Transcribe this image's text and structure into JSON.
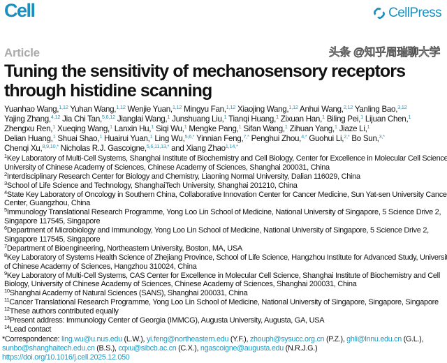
{
  "header": {
    "journal": "Cell",
    "publisher": "CellPress",
    "brand_color": "#1a8fc0"
  },
  "article_type": "Article",
  "title_lines": [
    "Tuning the sensitivity of mechanosensory receptors",
    "through histidine scanning"
  ],
  "author_lines": [
    [
      [
        "Yuanhao Wang,",
        "1,12"
      ],
      [
        "Yuhan Wang,",
        "1,12"
      ],
      [
        "Wenjie Yuan,",
        "1,12"
      ],
      [
        "Mingyu Fan,",
        "1,12"
      ],
      [
        "Xiaojing Wang,",
        "1,12"
      ],
      [
        "Anhui Wang,",
        "2,12"
      ],
      [
        "Yanling Bao,",
        "3,12"
      ]
    ],
    [
      [
        "Yajing Zhang,",
        "4,12"
      ],
      [
        "Jia Chi Tan,",
        "5,6,12"
      ],
      [
        "Jianglai Wang,",
        "1"
      ],
      [
        "Junshuang Liu,",
        "1"
      ],
      [
        "Tianqi Huang,",
        "1"
      ],
      [
        "Zixuan Han,",
        "1"
      ],
      [
        "Biling Pei,",
        "1"
      ],
      [
        "Lijuan Chen,",
        "1"
      ]
    ],
    [
      [
        "Zhengxu Ren,",
        "1"
      ],
      [
        "Xueqing Wang,",
        "1"
      ],
      [
        "Lanxin Hu,",
        "1"
      ],
      [
        "Siqi Wu,",
        "1"
      ],
      [
        "Mengke Pang,",
        "1"
      ],
      [
        "Sifan Wang,",
        "1"
      ],
      [
        "Zihuan Yang,",
        "1"
      ],
      [
        "Jiaze Li,",
        "1"
      ]
    ],
    [
      [
        "Delian Huang,",
        "1"
      ],
      [
        "Shuai Shao,",
        "1"
      ],
      [
        "Huairui Yuan,",
        "1"
      ],
      [
        "Ling Wu,",
        "5,6,*"
      ],
      [
        "Yinnian Feng,",
        "7,*"
      ],
      [
        "Penghui Zhou,",
        "4,*"
      ],
      [
        "Guohui Li,",
        "2,*"
      ],
      [
        "Bo Sun,",
        "3,*"
      ]
    ],
    [
      [
        "Chenqi Xu,",
        "8,9,10,*"
      ],
      [
        "Nicholas R.J. Gascoigne,",
        "5,6,11,13,*"
      ],
      [
        "and Xiang Zhao",
        "1,14,*"
      ]
    ]
  ],
  "affiliation_lines": [
    [
      "1",
      "Key Laboratory of Multi-Cell Systems, Shanghai Institute of Biochemistry and Cell Biology, Center for Excellence in Molecular Cell Science,"
    ],
    [
      "",
      "University of Chinese Academy of Sciences, Chinese Academy of Sciences, Shanghai 200031, China"
    ],
    [
      "2",
      "Interdisciplinary Research Center for Biology and Chemistry, Liaoning Normal University, Dalian 116029, China"
    ],
    [
      "3",
      "School of Life Science and Technology, ShanghaiTech University, Shanghai 201210, China"
    ],
    [
      "4",
      "State Key Laboratory of Oncology in Southern China, Collaborative Innovation Center for Cancer Medicine, Sun Yat-sen University Cancer"
    ],
    [
      "",
      "Center, Guangzhou, China"
    ],
    [
      "5",
      "Immunology Translational Research Programme, Yong Loo Lin School of Medicine, National University of Singapore, 5 Science Drive 2,"
    ],
    [
      "",
      "Singapore 117545, Singapore"
    ],
    [
      "6",
      "Department of Microbiology and Immunology, Yong Loo Lin School of Medicine, National University of Singapore, 5 Science Drive 2,"
    ],
    [
      "",
      "Singapore 117545, Singapore"
    ],
    [
      "7",
      "Department of Bioengineering, Northeastern University, Boston, MA, USA"
    ],
    [
      "8",
      "Key Laboratory of Systems Health Science of Zhejiang Province, School of Life Science, Hangzhou Institute for Advanced Study, University"
    ],
    [
      "",
      "of Chinese Academy of Sciences, Hangzhou 310024, China"
    ],
    [
      "9",
      "Key Laboratory of Multi-Cell Systems, CAS Center for Excellence in Molecular Cell Science, Shanghai Institute of Biochemistry and Cell"
    ],
    [
      "",
      "Biology, University of Chinese Academy of Sciences, Chinese Academy of Sciences, Shanghai 200031, China"
    ],
    [
      "10",
      "Shanghai Academy of Natural Sciences (SANS), Shanghai 200031, China"
    ],
    [
      "11",
      "Cancer Translational Research Programme, Yong Loo Lin School of Medicine, National University of Singapore, Singapore, Singapore"
    ],
    [
      "12",
      "These authors contributed equally"
    ],
    [
      "13",
      "Present address: Immunology Center of Georgia (IMMCG), Augusta University, Augusta, GA, USA"
    ],
    [
      "14",
      "Lead contact"
    ]
  ],
  "correspondence": {
    "label": "*Correspondence: ",
    "lines": [
      [
        [
          "ling.wu@u.nus.edu",
          " (L.W.), "
        ],
        [
          "yi.feng@northeastern.edu",
          " (Y.F.), "
        ],
        [
          "zhouph@sysucc.org.cn",
          " (P.Z.), "
        ],
        [
          "ghli@lnnu.edu.cn",
          " (G.L.),"
        ]
      ],
      [
        [
          "sunbo@shanghaitech.edu.cn",
          " (B.S.), "
        ],
        [
          "cqxu@sibcb.ac.cn",
          " (C.X.), "
        ],
        [
          "ngascoigne@augusta.edu",
          " (N.R.J.G.)"
        ]
      ]
    ],
    "doi": "https://doi.org/10.1016/j.cell.2025.12.050"
  },
  "watermark": "头条 @知乎周瑞聊大学"
}
